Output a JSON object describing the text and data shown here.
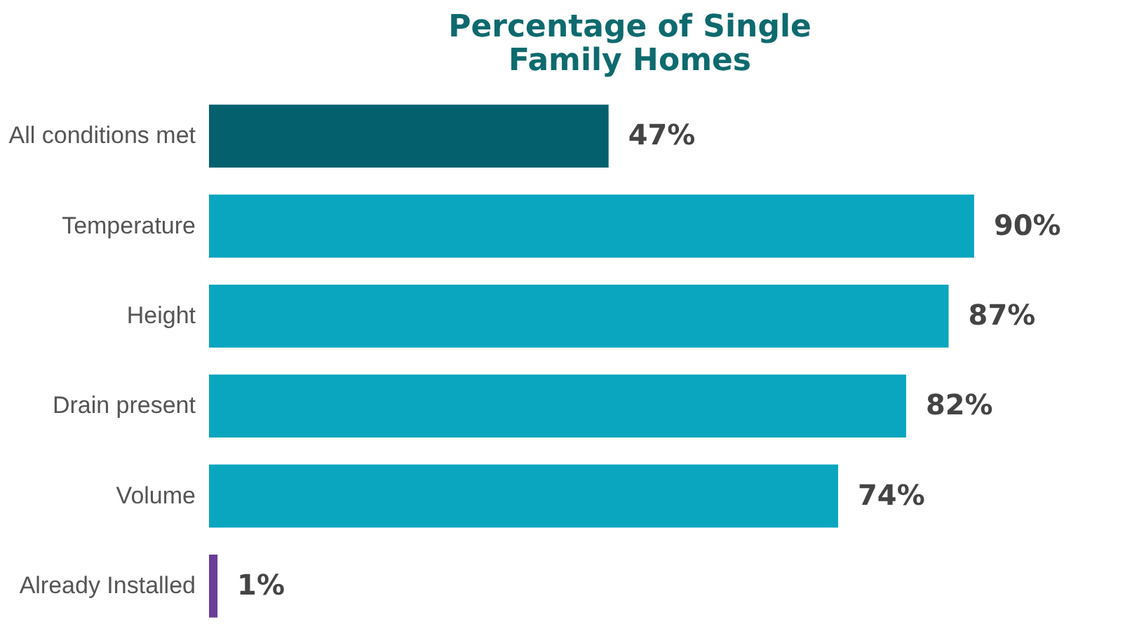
{
  "chart_data": {
    "type": "bar",
    "orientation": "horizontal",
    "title": "Percentage of Single Family Homes",
    "categories": [
      "All conditions met",
      "Temperature",
      "Height",
      "Drain present",
      "Volume",
      "Already Installed"
    ],
    "values": [
      47,
      90,
      87,
      82,
      74,
      1
    ],
    "colors": [
      "#05606e",
      "#0aa5bf",
      "#0aa5bf",
      "#0aa5bf",
      "#0aa5bf",
      "#6a3d9a"
    ],
    "value_labels": [
      "47%",
      "90%",
      "87%",
      "82%",
      "74%",
      "1%"
    ],
    "grid": false,
    "legend": false
  }
}
